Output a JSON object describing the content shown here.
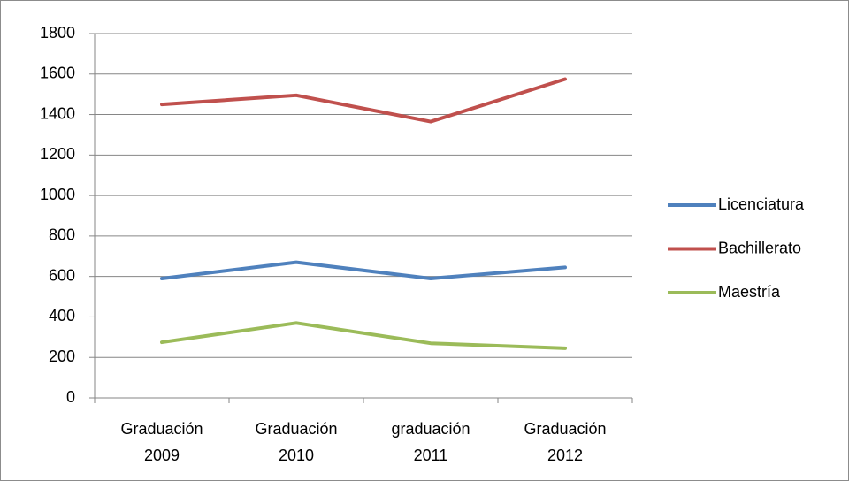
{
  "chart_data": {
    "type": "line",
    "categories": [
      "Graduación 2009",
      "Graduación 2010",
      "graduación 2011",
      "Graduación 2012"
    ],
    "series": [
      {
        "name": "Licenciatura",
        "color": "#4f81bd",
        "values": [
          590,
          670,
          590,
          645
        ]
      },
      {
        "name": "Bachillerato",
        "color": "#c0504d",
        "values": [
          1450,
          1495,
          1365,
          1575
        ]
      },
      {
        "name": "Maestría",
        "color": "#9bbb59",
        "values": [
          275,
          370,
          270,
          245
        ]
      }
    ],
    "ylim": [
      0,
      1800
    ],
    "yticks": [
      0,
      200,
      400,
      600,
      800,
      1000,
      1200,
      1400,
      1600,
      1800
    ],
    "grid": true,
    "legend": "right"
  }
}
